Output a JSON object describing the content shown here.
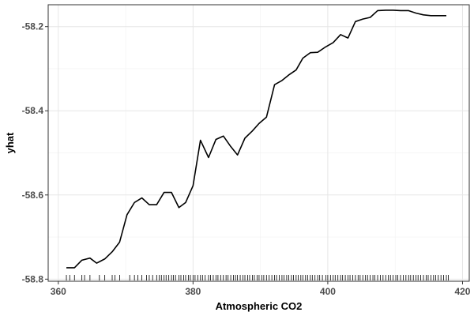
{
  "chart_data": {
    "type": "line",
    "title": "",
    "xlabel": "Atmospheric CO2",
    "ylabel": "yhat",
    "xlim": [
      358.5,
      421.0
    ],
    "ylim": [
      -58.805,
      -58.148
    ],
    "x_ticks": [
      360,
      380,
      400,
      420
    ],
    "y_ticks": [
      -58.8,
      -58.6,
      -58.4,
      -58.2
    ],
    "x_tick_labels": [
      "360",
      "380",
      "400",
      "420"
    ],
    "y_tick_labels": [
      "-58.8",
      "-58.6",
      "-58.4",
      "-58.2"
    ],
    "grid": true,
    "legend": "none",
    "line_color": "#000000",
    "series": [
      {
        "x": [
          361.2,
          362.4,
          363.5,
          364.7,
          365.7,
          366.9,
          368.0,
          369.1,
          370.2,
          371.3,
          372.4,
          373.5,
          374.6,
          375.7,
          376.8,
          377.9,
          378.9,
          380.0,
          381.1,
          382.3,
          383.4,
          384.5,
          385.6,
          386.6,
          387.7,
          388.8,
          389.8,
          390.9,
          392.1,
          393.2,
          394.2,
          395.3,
          396.3,
          397.4,
          398.5,
          399.7,
          400.8,
          401.9,
          403.0,
          404.1,
          405.2,
          406.3,
          407.4,
          408.6,
          409.7,
          410.8,
          412.0,
          413.1,
          414.2,
          415.3,
          416.4,
          417.6
        ],
        "y": [
          -58.773,
          -58.773,
          -58.755,
          -58.75,
          -58.762,
          -58.752,
          -58.735,
          -58.712,
          -58.647,
          -58.618,
          -58.607,
          -58.623,
          -58.623,
          -58.594,
          -58.594,
          -58.63,
          -58.618,
          -58.578,
          -58.47,
          -58.511,
          -58.468,
          -58.46,
          -58.485,
          -58.505,
          -58.465,
          -58.448,
          -58.43,
          -58.415,
          -58.338,
          -58.328,
          -58.315,
          -58.303,
          -58.275,
          -58.262,
          -58.261,
          -58.248,
          -58.238,
          -58.219,
          -58.227,
          -58.188,
          -58.182,
          -58.178,
          -58.162,
          -58.161,
          -58.161,
          -58.162,
          -58.162,
          -58.168,
          -58.172,
          -58.174,
          -58.174,
          -58.174
        ]
      }
    ],
    "rug": [
      361.2,
      361.7,
      362.4,
      363.5,
      363.9,
      364.7,
      366.1,
      366.9,
      368.0,
      368.4,
      369.1,
      370.6,
      371.3,
      371.8,
      372.4,
      373.1,
      373.5,
      374.0,
      374.6,
      375.0,
      375.3,
      375.7,
      376.0,
      376.4,
      376.8,
      377.1,
      377.4,
      377.9,
      378.2,
      378.6,
      378.9,
      379.3,
      379.6,
      380.0,
      380.3,
      380.7,
      381.1,
      381.4,
      381.8,
      382.3,
      382.6,
      383.0,
      383.4,
      383.7,
      384.1,
      384.5,
      384.9,
      385.2,
      385.6,
      386.0,
      386.3,
      386.6,
      387.0,
      387.4,
      387.7,
      388.1,
      388.4,
      388.8,
      389.1,
      389.5,
      389.8,
      390.2,
      390.5,
      390.9,
      391.3,
      391.7,
      392.1,
      392.4,
      392.8,
      393.2,
      393.5,
      393.9,
      394.2,
      394.6,
      394.9,
      395.3,
      395.6,
      396.0,
      396.3,
      396.7,
      397.0,
      397.4,
      397.7,
      398.1,
      398.5,
      398.8,
      399.2,
      399.7,
      400.0,
      400.4,
      400.8,
      401.1,
      401.5,
      401.9,
      402.2,
      402.6,
      403.0,
      403.3,
      403.7,
      404.1,
      404.5,
      404.8,
      405.2,
      405.6,
      405.9,
      406.3,
      406.7,
      407.0,
      407.4,
      407.8,
      408.2,
      408.6,
      409.0,
      409.3,
      409.7,
      410.1,
      410.4,
      410.8,
      411.2,
      411.6,
      412.0,
      412.3,
      412.7,
      413.1,
      413.4,
      413.8,
      414.2,
      414.6,
      414.9,
      415.3,
      415.7,
      416.0,
      416.4,
      416.8,
      417.2,
      417.6,
      417.9
    ]
  }
}
